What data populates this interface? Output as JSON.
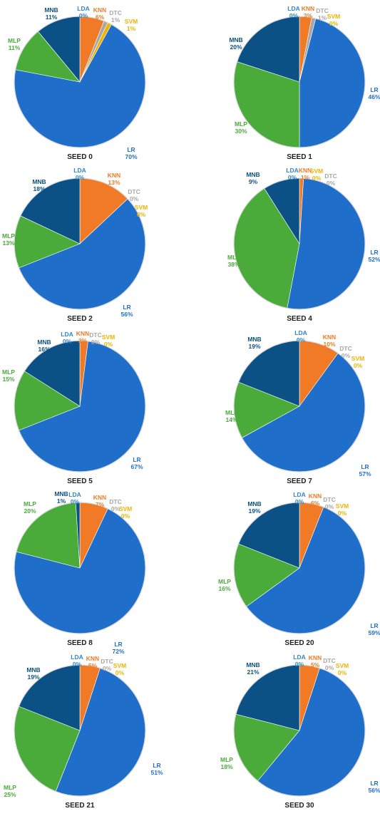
{
  "chart_data": {
    "type": "pie",
    "colors": {
      "LR": "#1f6fca",
      "MLP": "#4aab3a",
      "MNB": "#0b5186",
      "LDA": "#2e86c8",
      "KNN": "#f07a25",
      "DTC": "#a7a7a7",
      "SVM": "#efb400"
    },
    "charts": [
      {
        "title": "SEED 0",
        "slices": [
          {
            "name": "LDA",
            "value": 0,
            "label": "0%"
          },
          {
            "name": "KNN",
            "value": 6,
            "label": "6%"
          },
          {
            "name": "DTC",
            "value": 1,
            "label": "1%"
          },
          {
            "name": "SVM",
            "value": 1,
            "label": "1%"
          },
          {
            "name": "LR",
            "value": 70,
            "label": "70%"
          },
          {
            "name": "MLP",
            "value": 11,
            "label": "11%"
          },
          {
            "name": "MNB",
            "value": 11,
            "label": "11%"
          }
        ]
      },
      {
        "title": "SEED 1",
        "slices": [
          {
            "name": "LDA",
            "value": 0,
            "label": "0%"
          },
          {
            "name": "KNN",
            "value": 3,
            "label": "3%"
          },
          {
            "name": "DTC",
            "value": 1,
            "label": "1%"
          },
          {
            "name": "SVM",
            "value": 0,
            "label": "0%"
          },
          {
            "name": "LR",
            "value": 46,
            "label": "46%"
          },
          {
            "name": "MLP",
            "value": 30,
            "label": "30%"
          },
          {
            "name": "MNB",
            "value": 20,
            "label": "20%"
          }
        ]
      },
      {
        "title": "SEED 2",
        "slices": [
          {
            "name": "LDA",
            "value": 0,
            "label": "0%"
          },
          {
            "name": "KNN",
            "value": 13,
            "label": "13%"
          },
          {
            "name": "DTC",
            "value": 0,
            "label": "0%"
          },
          {
            "name": "SVM",
            "value": 0,
            "label": "0%"
          },
          {
            "name": "LR",
            "value": 56,
            "label": "56%"
          },
          {
            "name": "MLP",
            "value": 13,
            "label": "13%"
          },
          {
            "name": "MNB",
            "value": 18,
            "label": "18%"
          }
        ]
      },
      {
        "title": "SEED 4",
        "slices": [
          {
            "name": "LDA",
            "value": 0,
            "label": "0%"
          },
          {
            "name": "KNN",
            "value": 1,
            "label": "1%"
          },
          {
            "name": "SVM",
            "value": 0,
            "label": "0%"
          },
          {
            "name": "DTC",
            "value": 0,
            "label": "0%"
          },
          {
            "name": "LR",
            "value": 52,
            "label": "52%"
          },
          {
            "name": "MLP",
            "value": 38,
            "label": "38%"
          },
          {
            "name": "MNB",
            "value": 9,
            "label": "9%"
          }
        ]
      },
      {
        "title": "SEED 5",
        "slices": [
          {
            "name": "LDA",
            "value": 0,
            "label": "0%"
          },
          {
            "name": "KNN",
            "value": 2,
            "label": "2%"
          },
          {
            "name": "DTC",
            "value": 0,
            "label": "0%"
          },
          {
            "name": "SVM",
            "value": 0,
            "label": "0%"
          },
          {
            "name": "LR",
            "value": 67,
            "label": "67%"
          },
          {
            "name": "MLP",
            "value": 15,
            "label": "15%"
          },
          {
            "name": "MNB",
            "value": 16,
            "label": "16%"
          }
        ]
      },
      {
        "title": "SEED 7",
        "slices": [
          {
            "name": "LDA",
            "value": 0,
            "label": "0%"
          },
          {
            "name": "KNN",
            "value": 10,
            "label": "10%"
          },
          {
            "name": "DTC",
            "value": 0,
            "label": "0%"
          },
          {
            "name": "SVM",
            "value": 0,
            "label": "0%"
          },
          {
            "name": "LR",
            "value": 57,
            "label": "57%"
          },
          {
            "name": "MLP",
            "value": 14,
            "label": "14%"
          },
          {
            "name": "MNB",
            "value": 19,
            "label": "19%"
          }
        ]
      },
      {
        "title": "SEED 8",
        "slices": [
          {
            "name": "LDA",
            "value": 0,
            "label": "0%"
          },
          {
            "name": "KNN",
            "value": 7,
            "label": "7%"
          },
          {
            "name": "DTC",
            "value": 0,
            "label": "0%"
          },
          {
            "name": "SVM",
            "value": 0,
            "label": "0%"
          },
          {
            "name": "LR",
            "value": 72,
            "label": "72%"
          },
          {
            "name": "MLP",
            "value": 20,
            "label": "20%"
          },
          {
            "name": "MNB",
            "value": 1,
            "label": "1%"
          }
        ]
      },
      {
        "title": "SEED 20",
        "slices": [
          {
            "name": "LDA",
            "value": 0,
            "label": "0%"
          },
          {
            "name": "KNN",
            "value": 6,
            "label": "6%"
          },
          {
            "name": "DTC",
            "value": 0,
            "label": "0%"
          },
          {
            "name": "SVM",
            "value": 0,
            "label": "0%"
          },
          {
            "name": "LR",
            "value": 59,
            "label": "59%"
          },
          {
            "name": "MLP",
            "value": 16,
            "label": "16%"
          },
          {
            "name": "MNB",
            "value": 19,
            "label": "19%"
          }
        ]
      },
      {
        "title": "SEED 21",
        "slices": [
          {
            "name": "LDA",
            "value": 0,
            "label": "0%"
          },
          {
            "name": "KNN",
            "value": 5,
            "label": "5%"
          },
          {
            "name": "DTC",
            "value": 0,
            "label": "0%"
          },
          {
            "name": "SVM",
            "value": 0,
            "label": "0%"
          },
          {
            "name": "LR",
            "value": 51,
            "label": "51%"
          },
          {
            "name": "MLP",
            "value": 25,
            "label": "25%"
          },
          {
            "name": "MNB",
            "value": 19,
            "label": "19%"
          }
        ]
      },
      {
        "title": "SEED 30",
        "slices": [
          {
            "name": "LDA",
            "value": 0,
            "label": "0%"
          },
          {
            "name": "KNN",
            "value": 5,
            "label": "5%"
          },
          {
            "name": "DTC",
            "value": 0,
            "label": "0%"
          },
          {
            "name": "SVM",
            "value": 0,
            "label": "0%"
          },
          {
            "name": "LR",
            "value": 56,
            "label": "56%"
          },
          {
            "name": "MLP",
            "value": 18,
            "label": "18%"
          },
          {
            "name": "MNB",
            "value": 21,
            "label": "21%"
          }
        ]
      }
    ]
  }
}
